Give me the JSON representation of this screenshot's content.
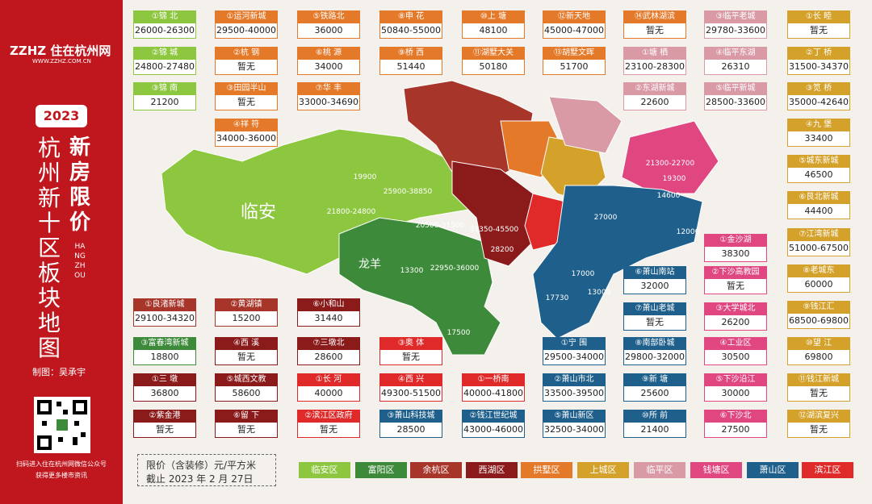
{
  "sidebar": {
    "logo": "ZZHZ 住在杭州网",
    "site": "WWW.ZZHZ.COM.CN",
    "year": "2023",
    "title": "杭州新十区板块地图",
    "subtitle": "新房限价",
    "english": "HANGZHOU",
    "author": "制图：吴承宇",
    "qr_note_1": "扫码进入住在杭州网微信公众号",
    "qr_note_2": "获得更多楼市资讯"
  },
  "cards": [
    {
      "label": "①锦 北",
      "price": "26000-26300",
      "color": "#8dc63f"
    },
    {
      "label": "②锦 城",
      "price": "24800-27480",
      "color": "#8dc63f"
    },
    {
      "label": "③锦 南",
      "price": "21200",
      "color": "#8dc63f"
    },
    {
      "label": "①运河新城",
      "price": "29500-40000",
      "color": "#e5792a"
    },
    {
      "label": "②杭 钢",
      "price": "暂无",
      "color": "#e5792a"
    },
    {
      "label": "③田园半山",
      "price": "暂无",
      "color": "#e5792a"
    },
    {
      "label": "④祥 符",
      "price": "34000-36000",
      "color": "#e5792a"
    },
    {
      "label": "⑤铁路北",
      "price": "36000",
      "color": "#e5792a"
    },
    {
      "label": "⑥桃 源",
      "price": "34000",
      "color": "#e5792a"
    },
    {
      "label": "⑦华 丰",
      "price": "33000-34690",
      "color": "#e5792a"
    },
    {
      "label": "⑧申 花",
      "price": "50840-55000",
      "color": "#e5792a"
    },
    {
      "label": "⑨桥 西",
      "price": "51440",
      "color": "#e5792a"
    },
    {
      "label": "⑩上 塘",
      "price": "48100",
      "color": "#e5792a"
    },
    {
      "label": "⑪湖墅大关",
      "price": "50180",
      "color": "#e5792a"
    },
    {
      "label": "⑫新天地",
      "price": "45000-47000",
      "color": "#e5792a"
    },
    {
      "label": "⑬胡墅文晖",
      "price": "51700",
      "color": "#e5792a"
    },
    {
      "label": "⑭武林湖滨",
      "price": "暂无",
      "color": "#e5792a"
    },
    {
      "label": "①塘 栖",
      "price": "23100-28300",
      "color": "#d99aa6"
    },
    {
      "label": "②东湖新城",
      "price": "22600",
      "color": "#d99aa6"
    },
    {
      "label": "③临平老城",
      "price": "29780-33600",
      "color": "#d99aa6"
    },
    {
      "label": "④临平东湖",
      "price": "26310",
      "color": "#d99aa6"
    },
    {
      "label": "⑤临平新城",
      "price": "28500-33600",
      "color": "#d99aa6"
    },
    {
      "label": "①长 睦",
      "price": "暂无",
      "color": "#d4a12a"
    },
    {
      "label": "②丁 桥",
      "price": "31500-34370",
      "color": "#d4a12a"
    },
    {
      "label": "③笕 桥",
      "price": "35000-42640",
      "color": "#d4a12a"
    },
    {
      "label": "④九 堡",
      "price": "33400",
      "color": "#d4a12a"
    },
    {
      "label": "⑤城东新城",
      "price": "46500",
      "color": "#d4a12a"
    },
    {
      "label": "⑥艮北新城",
      "price": "44400",
      "color": "#d4a12a"
    },
    {
      "label": "⑦江湾新城",
      "price": "51000-67500",
      "color": "#d4a12a"
    },
    {
      "label": "⑧老城东",
      "price": "60000",
      "color": "#d4a12a"
    },
    {
      "label": "⑨钱江汇",
      "price": "68500-69800",
      "color": "#d4a12a"
    },
    {
      "label": "⑩望 江",
      "price": "69800",
      "color": "#d4a12a"
    },
    {
      "label": "⑪钱江新城",
      "price": "暂无",
      "color": "#d4a12a"
    },
    {
      "label": "⑫湖滨复兴",
      "price": "暂无",
      "color": "#d4a12a"
    },
    {
      "label": "①金沙湖",
      "price": "38300",
      "color": "#e0467f"
    },
    {
      "label": "②下沙高教园",
      "price": "暂无",
      "color": "#e0467f"
    },
    {
      "label": "③大学城北",
      "price": "26200",
      "color": "#e0467f"
    },
    {
      "label": "④工业区",
      "price": "30500",
      "color": "#e0467f"
    },
    {
      "label": "⑤下沙沿江",
      "price": "30000",
      "color": "#e0467f"
    },
    {
      "label": "⑥下沙北",
      "price": "27500",
      "color": "#e0467f"
    },
    {
      "label": "⑥萧山南站",
      "price": "32000",
      "color": "#1f5f8b"
    },
    {
      "label": "⑦萧山老城",
      "price": "暂无",
      "color": "#1f5f8b"
    },
    {
      "label": "⑧南部卧城",
      "price": "29800-32000",
      "color": "#1f5f8b"
    },
    {
      "label": "⑨新 塘",
      "price": "25600",
      "color": "#1f5f8b"
    },
    {
      "label": "⑩所 前",
      "price": "21400",
      "color": "#1f5f8b"
    },
    {
      "label": "①宁 围",
      "price": "29500-34000",
      "color": "#1f5f8b"
    },
    {
      "label": "②萧山市北",
      "price": "33500-39500",
      "color": "#1f5f8b"
    },
    {
      "label": "⑤萧山新区",
      "price": "32500-34000",
      "color": "#1f5f8b"
    },
    {
      "label": "①一桥南",
      "price": "40000-41800",
      "color": "#e02a2a"
    },
    {
      "label": "②钱江世纪城",
      "price": "43000-46000",
      "color": "#1f5f8b"
    },
    {
      "label": "③奥 体",
      "price": "暂无",
      "color": "#e02a2a"
    },
    {
      "label": "④西 兴",
      "price": "49300-51500",
      "color": "#e02a2a"
    },
    {
      "label": "③萧山科技城",
      "price": "28500",
      "color": "#1f5f8b"
    },
    {
      "label": "⑥小和山",
      "price": "31440",
      "color": "#8b1a1a"
    },
    {
      "label": "⑦三墩北",
      "price": "28600",
      "color": "#8b1a1a"
    },
    {
      "label": "①长 河",
      "price": "40000",
      "color": "#e02a2a"
    },
    {
      "label": "②滨江区政府",
      "price": "暂无",
      "color": "#e02a2a"
    },
    {
      "label": "②黄湖镇",
      "price": "15200",
      "color": "#a8352a"
    },
    {
      "label": "④西 溪",
      "price": "暂无",
      "color": "#8b1a1a"
    },
    {
      "label": "⑤城西文教",
      "price": "58600",
      "color": "#8b1a1a"
    },
    {
      "label": "⑥留 下",
      "price": "暂无",
      "color": "#8b1a1a"
    },
    {
      "label": "①良渚新城",
      "price": "29100-34320",
      "color": "#a8352a"
    },
    {
      "label": "③富春湾新城",
      "price": "18800",
      "color": "#3d8a3a"
    },
    {
      "label": "①三 墩",
      "price": "36800",
      "color": "#8b1a1a"
    },
    {
      "label": "②紫金港",
      "price": "暂无",
      "color": "#8b1a1a"
    }
  ],
  "map": {
    "labels": [
      "临安",
      "龙羊",
      "21800-24800",
      "19900",
      "25900-38850",
      "20500-31500",
      "22950-36000",
      "13300",
      "17500",
      "31350-45500",
      "28200",
      "21300-22700",
      "19300",
      "14600",
      "27000",
      "12000",
      "17000",
      "13000",
      "17730"
    ]
  },
  "legend": {
    "note": "限价（含装修）元/平方米",
    "date": "截止 2023 年 2 月 27日",
    "items": [
      {
        "name": "临安区",
        "color": "#8dc63f"
      },
      {
        "name": "富阳区",
        "color": "#3d8a3a"
      },
      {
        "name": "余杭区",
        "color": "#a8352a"
      },
      {
        "name": "西湖区",
        "color": "#8b1a1a"
      },
      {
        "name": "拱墅区",
        "color": "#e5792a"
      },
      {
        "name": "上城区",
        "color": "#d4a12a"
      },
      {
        "name": "临平区",
        "color": "#d99aa6"
      },
      {
        "name": "钱塘区",
        "color": "#e0467f"
      },
      {
        "name": "萧山区",
        "color": "#1f5f8b"
      },
      {
        "name": "滨江区",
        "color": "#e02a2a"
      }
    ]
  }
}
